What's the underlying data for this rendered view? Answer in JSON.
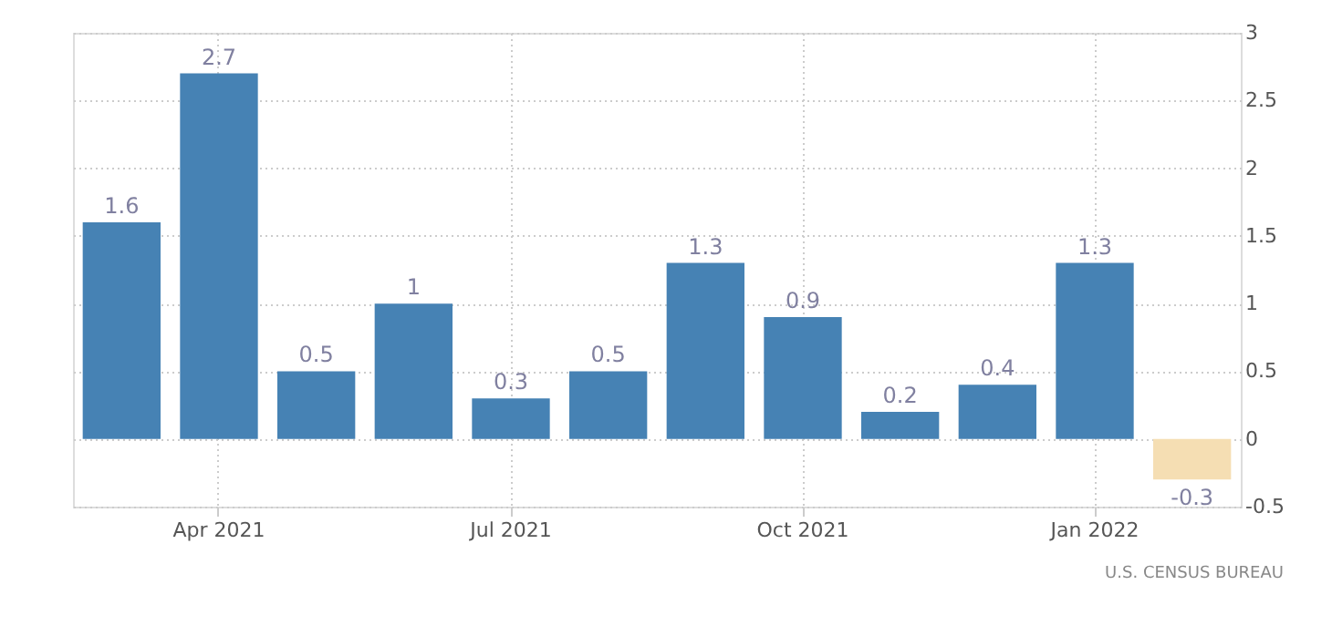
{
  "chart_data": {
    "type": "bar",
    "categories": [
      null,
      "Apr 2021",
      null,
      null,
      "Jul 2021",
      null,
      null,
      "Oct 2021",
      null,
      null,
      "Jan 2022",
      null
    ],
    "values": [
      1.6,
      2.7,
      0.5,
      1,
      0.3,
      0.5,
      1.3,
      0.9,
      0.2,
      0.4,
      1.3,
      -0.3
    ],
    "colors": [
      "#4682b4",
      "#4682b4",
      "#4682b4",
      "#4682b4",
      "#4682b4",
      "#4682b4",
      "#4682b4",
      "#4682b4",
      "#4682b4",
      "#4682b4",
      "#4682b4",
      "#f5deb3"
    ],
    "data_labels": true,
    "ylim": [
      -0.5,
      3
    ],
    "yticks": [
      -0.5,
      0,
      0.5,
      1,
      1.5,
      2,
      2.5,
      3
    ],
    "grid": true,
    "annotations": [
      "U.S. CENSUS BUREAU"
    ]
  }
}
